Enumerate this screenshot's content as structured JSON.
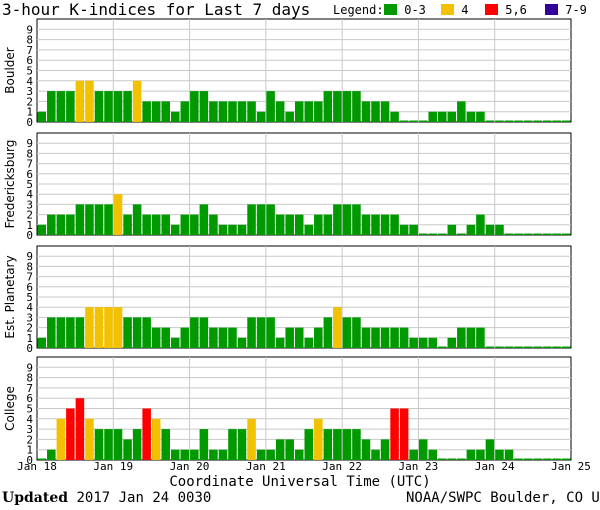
{
  "chart_data": {
    "type": "bar",
    "title": "3-hour K-indices for Last 7 days",
    "legend_title": "Legend:",
    "legend": [
      {
        "label": "0-3",
        "color": "#009900"
      },
      {
        "label": "4",
        "color": "#F2C200"
      },
      {
        "label": "5,6",
        "color": "#FF0000"
      },
      {
        "label": "7-9",
        "color": "#330099"
      }
    ],
    "xlabel": "Coordinate Universal Time (UTC)",
    "x_ticks": [
      "Jan 18",
      "Jan 19",
      "Jan 20",
      "Jan 21",
      "Jan 22",
      "Jan 23",
      "Jan 24",
      "Jan 25"
    ],
    "ylim": [
      0,
      9
    ],
    "y_ticks": [
      "0",
      "1",
      "2",
      "3",
      "4",
      "5",
      "6",
      "7",
      "8",
      "9"
    ],
    "series": [
      {
        "name": "Boulder",
        "values": [
          1,
          3,
          3,
          3,
          4,
          4,
          3,
          3,
          3,
          3,
          4,
          2,
          2,
          2,
          1,
          2,
          3,
          3,
          2,
          2,
          2,
          2,
          2,
          1,
          3,
          2,
          1,
          2,
          2,
          2,
          3,
          3,
          3,
          3,
          2,
          2,
          2,
          1,
          0,
          0,
          0,
          1,
          1,
          1,
          2,
          1,
          1,
          0,
          0,
          0,
          0,
          0,
          0,
          0,
          0,
          0
        ]
      },
      {
        "name": "Fredericksburg",
        "values": [
          1,
          2,
          2,
          2,
          3,
          3,
          3,
          3,
          4,
          2,
          3,
          2,
          2,
          2,
          1,
          2,
          2,
          3,
          2,
          1,
          1,
          1,
          3,
          3,
          3,
          2,
          2,
          2,
          1,
          2,
          2,
          3,
          3,
          3,
          2,
          2,
          2,
          2,
          1,
          1,
          0,
          0,
          0,
          1,
          0,
          1,
          2,
          1,
          1,
          0,
          0,
          0,
          0,
          0,
          0,
          0
        ]
      },
      {
        "name": "Est. Planetary",
        "values": [
          1,
          3,
          3,
          3,
          3,
          4,
          4,
          4,
          4,
          3,
          3,
          3,
          2,
          2,
          1,
          2,
          3,
          3,
          2,
          2,
          2,
          1,
          3,
          3,
          3,
          1,
          2,
          2,
          1,
          2,
          3,
          4,
          3,
          3,
          2,
          2,
          2,
          2,
          2,
          1,
          1,
          1,
          0,
          1,
          2,
          2,
          2,
          0,
          0,
          0,
          0,
          0,
          0,
          0,
          0,
          0
        ]
      },
      {
        "name": "College",
        "values": [
          0,
          1,
          4,
          5,
          6,
          4,
          3,
          3,
          3,
          2,
          3,
          5,
          4,
          3,
          1,
          1,
          1,
          3,
          1,
          1,
          3,
          3,
          4,
          1,
          1,
          2,
          2,
          1,
          3,
          4,
          3,
          3,
          3,
          3,
          2,
          1,
          2,
          5,
          5,
          1,
          2,
          1,
          0,
          0,
          0,
          1,
          1,
          2,
          1,
          1,
          0,
          0,
          0,
          0,
          0,
          0
        ]
      }
    ]
  },
  "footer": {
    "updated_label": "Updated",
    "updated_value": "2017 Jan 24 0030",
    "source": "NOAA/SWPC Boulder, CO USA"
  }
}
